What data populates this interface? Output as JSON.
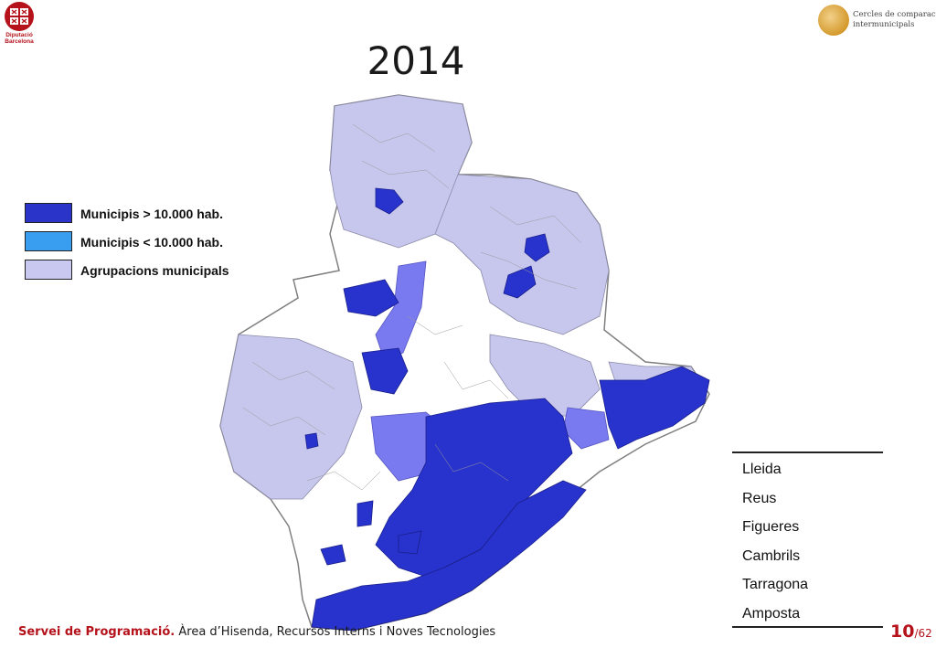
{
  "header": {
    "left_logo": {
      "line1": "Diputació",
      "line2": "Barcelona",
      "icon": "diputacio-seal-icon",
      "color": "#b5121b"
    },
    "right_logo": {
      "line1": "Cercles de comparació",
      "line2": "intermunicipals",
      "icon": "golden-globe-icon"
    },
    "title": "2014"
  },
  "legend": [
    {
      "label": "Municipis > 10.000 hab.",
      "color": "#2b34c8"
    },
    {
      "label": "Municipis < 10.000 hab.",
      "color": "#3a9ef0"
    },
    {
      "label": "Agrupacions municipals",
      "color": "#c8c8f0"
    }
  ],
  "map": {
    "description_colors": {
      "large": "#2733cc",
      "medium": "#7a7af0",
      "groups": "#c7c7ee",
      "other": "#ffffff",
      "border": "#888888"
    }
  },
  "cities": [
    "Lleida",
    "Reus",
    "Figueres",
    "Cambrils",
    "Tarragona",
    "Amposta"
  ],
  "footer": {
    "strong": "Servei de Programació.",
    "rest": " Àrea d’Hisenda, Recursos Interns i Noves Tecnologies"
  },
  "pager": {
    "current": "10",
    "total": "/62"
  }
}
